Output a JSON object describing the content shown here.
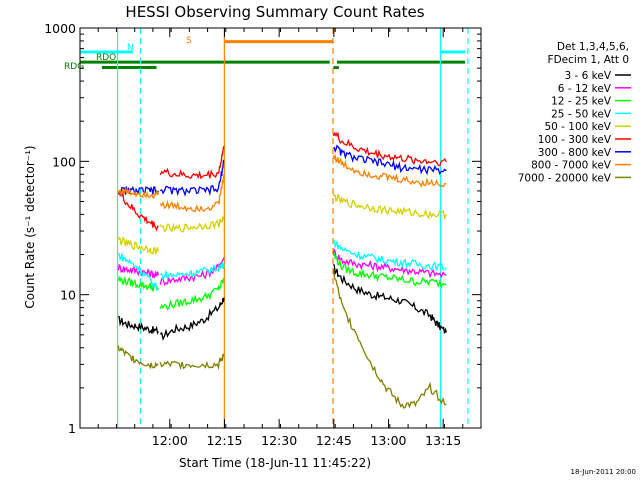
{
  "chart_data": {
    "type": "line",
    "title": "HESSI Observing Summary Count Rates",
    "xlabel": "Start Time (18-Jun-11 11:45:22)",
    "ylabel": "Count Rate (s⁻¹ detector⁻¹)",
    "yscale": "log",
    "ylim": [
      1,
      1000
    ],
    "xlim_minutes_after_start": [
      -10,
      100
    ],
    "grid": false,
    "legend_position": "right",
    "x_tick_labels": [
      "12:00",
      "12:15",
      "12:30",
      "12:45",
      "13:00",
      "13:15"
    ],
    "x_tick_minutes": [
      14.63,
      29.63,
      44.63,
      59.63,
      74.63,
      89.63
    ],
    "y_tick_labels": [
      "1",
      "10",
      "100",
      "1000"
    ],
    "y_tick_values": [
      1,
      10,
      100,
      1000
    ],
    "legend_header": [
      "Det 1,3,4,5,6,",
      "FDecim 1, Att 0"
    ],
    "series": [
      {
        "name": "3 - 6 keV",
        "color": "#000000",
        "segments": [
          {
            "x": [
              0.5,
              3,
              6,
              9,
              11.5
            ],
            "y": [
              6.5,
              6,
              5.8,
              5.5,
              5.3
            ]
          },
          {
            "x": [
              12,
              16,
              20,
              24,
              28,
              29.5
            ],
            "y": [
              4.8,
              5.5,
              5.8,
              6.5,
              8,
              9.5
            ]
          },
          {
            "x": [
              59.5,
              62,
              66,
              70,
              74,
              78,
              82,
              86,
              88,
              90.5
            ],
            "y": [
              16,
              13,
              11,
              10,
              9.5,
              9,
              8,
              7,
              6,
              5.2
            ]
          }
        ]
      },
      {
        "name": "6 - 12 keV",
        "color": "#ff00ff",
        "segments": [
          {
            "x": [
              0.5,
              3,
              6,
              9,
              11.5
            ],
            "y": [
              16,
              15.5,
              15,
              14.5,
              14
            ]
          },
          {
            "x": [
              12,
              16,
              20,
              24,
              28,
              29.5
            ],
            "y": [
              12.5,
              13,
              13.5,
              14,
              16,
              19
            ]
          },
          {
            "x": [
              59.5,
              62,
              66,
              70,
              74,
              78,
              82,
              86,
              90.5
            ],
            "y": [
              21,
              18,
              17,
              16.5,
              16,
              15.5,
              15,
              14.5,
              14
            ]
          }
        ]
      },
      {
        "name": "12 - 25 keV",
        "color": "#00ff00",
        "segments": [
          {
            "x": [
              0.5,
              3,
              6,
              9,
              11.5
            ],
            "y": [
              13,
              12.5,
              12,
              11.5,
              11
            ]
          },
          {
            "x": [
              12,
              16,
              20,
              24,
              28,
              29.5
            ],
            "y": [
              8,
              8.5,
              9,
              9.5,
              11,
              13
            ]
          },
          {
            "x": [
              59.5,
              62,
              66,
              70,
              74,
              78,
              82,
              86,
              90.5
            ],
            "y": [
              20,
              16,
              14.5,
              14,
              13.5,
              13,
              12.5,
              12.5,
              12
            ]
          }
        ]
      },
      {
        "name": "25 - 50 keV",
        "color": "#00ffff",
        "segments": [
          {
            "x": [
              0.5,
              3,
              6,
              9,
              11.5
            ],
            "y": [
              20,
              18,
              16,
              13,
              11
            ]
          },
          {
            "x": [
              12,
              16,
              20,
              24,
              28,
              29.5
            ],
            "y": [
              14,
              14,
              14.5,
              15,
              16,
              17
            ]
          },
          {
            "x": [
              59.5,
              62,
              66,
              70,
              74,
              78,
              82,
              86,
              90.5
            ],
            "y": [
              25,
              22,
              20,
              19,
              18,
              17.5,
              17,
              16.5,
              16
            ]
          }
        ]
      },
      {
        "name": "50 - 100 keV",
        "color": "#d2d200",
        "segments": [
          {
            "x": [
              0.5,
              3,
              6,
              9,
              11.5
            ],
            "y": [
              26,
              24,
              23,
              22,
              21
            ]
          },
          {
            "x": [
              12,
              16,
              20,
              24,
              28,
              29.5
            ],
            "y": [
              32,
              31,
              32,
              33,
              34,
              38
            ]
          },
          {
            "x": [
              59.5,
              62,
              66,
              70,
              74,
              78,
              82,
              86,
              90.5
            ],
            "y": [
              55,
              50,
              47,
              45,
              43,
              42,
              41,
              40,
              40
            ]
          }
        ]
      },
      {
        "name": "100 - 300 keV",
        "color": "#ff0000",
        "segments": [
          {
            "x": [
              0.5,
              3,
              6,
              9,
              11.5
            ],
            "y": [
              60,
              48,
              40,
              35,
              32
            ]
          },
          {
            "x": [
              12,
              16,
              20,
              24,
              28,
              29.5
            ],
            "y": [
              84,
              80,
              78,
              78,
              82,
              130
            ]
          },
          {
            "x": [
              59.5,
              62,
              66,
              70,
              74,
              78,
              82,
              86,
              90.5
            ],
            "y": [
              165,
              140,
              125,
              115,
              110,
              105,
              102,
              100,
              99
            ]
          }
        ]
      },
      {
        "name": "300 - 800 keV",
        "color": "#0000ff",
        "segments": [
          {
            "x": [
              0.5,
              3,
              6,
              9,
              11.5
            ],
            "y": [
              60,
              60,
              60,
              60,
              60
            ]
          },
          {
            "x": [
              12,
              16,
              20,
              24,
              28,
              29.5
            ],
            "y": [
              62,
              60,
              60,
              60,
              62,
              100
            ]
          },
          {
            "x": [
              59.5,
              62,
              66,
              70,
              74,
              78,
              82,
              86,
              90.5
            ],
            "y": [
              130,
              115,
              105,
              100,
              95,
              90,
              88,
              86,
              85
            ]
          }
        ]
      },
      {
        "name": "800 - 7000 keV",
        "color": "#ff8000",
        "segments": [
          {
            "x": [
              0.5,
              3,
              6,
              9,
              11.5
            ],
            "y": [
              60,
              59,
              58,
              57,
              56
            ]
          },
          {
            "x": [
              12,
              16,
              20,
              24,
              28,
              29.5
            ],
            "y": [
              48,
              46,
              45,
              45,
              47,
              80
            ]
          },
          {
            "x": [
              59.5,
              62,
              66,
              70,
              74,
              78,
              82,
              86,
              90.5
            ],
            "y": [
              110,
              95,
              85,
              80,
              76,
              73,
              70,
              69,
              68
            ]
          }
        ]
      },
      {
        "name": "7000 - 20000 keV",
        "color": "#808000",
        "segments": [
          {
            "x": [
              0.5,
              3,
              6,
              9,
              11.5
            ],
            "y": [
              4,
              3.5,
              3.2,
              3,
              3
            ]
          },
          {
            "x": [
              12,
              16,
              20,
              24,
              28,
              29.5
            ],
            "y": [
              3,
              3,
              3,
              3,
              3,
              3.5
            ]
          },
          {
            "x": [
              59.5,
              62,
              66,
              70,
              74,
              78,
              82,
              86,
              90.5
            ],
            "y": [
              15,
              8,
              5,
              3,
              2,
              1.5,
              1.5,
              2,
              1.5
            ]
          }
        ]
      }
    ],
    "markers": {
      "orange_lines_minutes": [
        29.6,
        59.4
      ],
      "cyan_solid_minutes": [
        0.3,
        88.9
      ],
      "cyan_dashed_minutes": [
        6.6,
        96.4
      ]
    },
    "flag_bars": [
      {
        "label": "S",
        "color": "#ff8000",
        "level": 790,
        "segments": [
          [
            29.6,
            59.4
          ]
        ]
      },
      {
        "label": "N",
        "color": "#00ffff",
        "level": 660,
        "segments": [
          [
            -10,
            4.5
          ],
          [
            89,
            100
          ]
        ]
      },
      {
        "label": "RDO",
        "color": "#008000",
        "level": 555,
        "segments": [
          [
            -10,
            58.5
          ],
          [
            60.5,
            100
          ]
        ]
      },
      {
        "label": "RDG",
        "color": "#008000",
        "level": 505,
        "segments": [
          [
            -4,
            11
          ],
          [
            59.5,
            61
          ]
        ]
      }
    ],
    "footer": "18-Jun-2011 20:00"
  }
}
